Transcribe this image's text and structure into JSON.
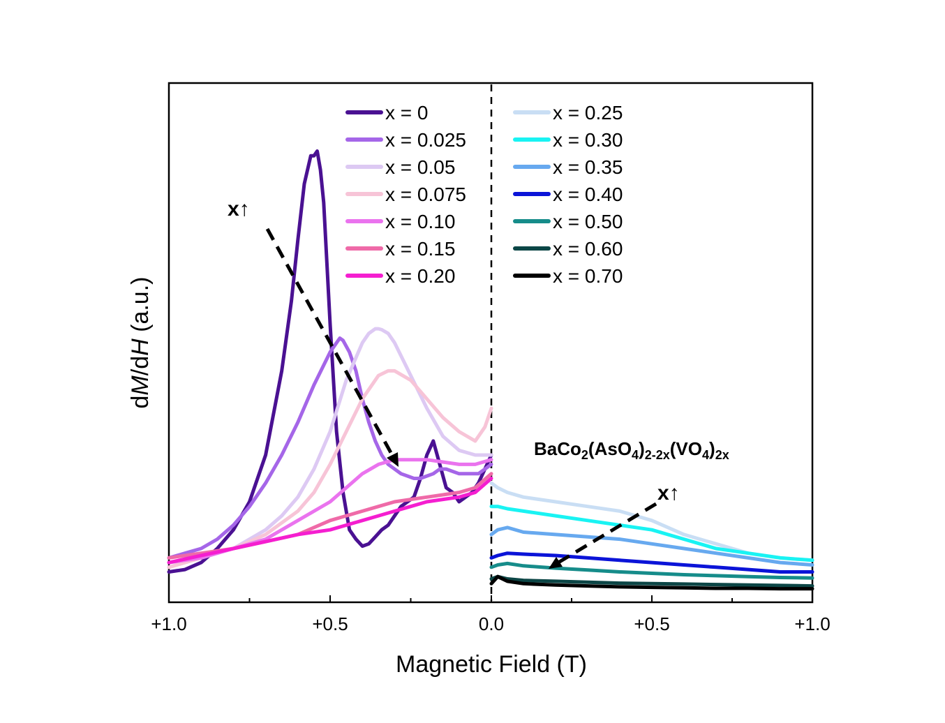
{
  "chart_data": {
    "type": "line",
    "title": "",
    "xlabel": "Magnetic Field (T)",
    "ylabel": "dM/dH (a.u.)",
    "ylabel_parts": {
      "pre": "d",
      "M": "M",
      "mid": "/d",
      "H": "H",
      "post": " (a.u.)"
    },
    "x_tick_labels": [
      "+1.0",
      "+0.5",
      "0.0",
      "+0.5",
      "+1.0"
    ],
    "xlim": [
      -1.0,
      1.0
    ],
    "ylim": [
      0,
      1
    ],
    "grid": false,
    "legend_placement": "top-center",
    "annotations": {
      "compound": {
        "base": "BaCo",
        "s1": "2",
        "p1": "(AsO",
        "s2": "4",
        "p2": ")",
        "s3": "2-2x",
        "p3": "(VO",
        "s4": "4",
        "p4": ")",
        "s5": "2x"
      },
      "trend_left": "x↑",
      "trend_right": "x↑"
    },
    "series": [
      {
        "name": "x = 0",
        "color": "#4a1192",
        "x": [
          -1.0,
          -0.95,
          -0.9,
          -0.85,
          -0.8,
          -0.75,
          -0.7,
          -0.65,
          -0.62,
          -0.6,
          -0.58,
          -0.56,
          -0.55,
          -0.54,
          -0.53,
          -0.52,
          -0.5,
          -0.48,
          -0.46,
          -0.44,
          -0.42,
          -0.4,
          -0.38,
          -0.36,
          -0.34,
          -0.32,
          -0.3,
          -0.28,
          -0.26,
          -0.24,
          -0.22,
          -0.2,
          -0.18,
          -0.16,
          -0.14,
          -0.12,
          -0.1,
          -0.08,
          -0.06,
          -0.04,
          -0.02,
          0.0
        ],
        "y": [
          0.05,
          0.055,
          0.07,
          0.1,
          0.14,
          0.2,
          0.3,
          0.48,
          0.63,
          0.76,
          0.88,
          0.94,
          0.94,
          0.95,
          0.91,
          0.84,
          0.58,
          0.35,
          0.22,
          0.14,
          0.12,
          0.105,
          0.11,
          0.125,
          0.14,
          0.15,
          0.17,
          0.19,
          0.2,
          0.21,
          0.25,
          0.3,
          0.33,
          0.28,
          0.23,
          0.22,
          0.2,
          0.21,
          0.22,
          0.24,
          0.27,
          0.3
        ]
      },
      {
        "name": "x = 0.025",
        "color": "#a566e8",
        "x": [
          -1.0,
          -0.95,
          -0.9,
          -0.85,
          -0.8,
          -0.75,
          -0.7,
          -0.65,
          -0.6,
          -0.55,
          -0.5,
          -0.48,
          -0.47,
          -0.46,
          -0.44,
          -0.42,
          -0.4,
          -0.38,
          -0.36,
          -0.34,
          -0.32,
          -0.3,
          -0.28,
          -0.26,
          -0.24,
          -0.22,
          -0.2,
          -0.18,
          -0.16,
          -0.14,
          -0.12,
          -0.1,
          -0.08,
          -0.06,
          -0.04,
          -0.02,
          0.0
        ],
        "y": [
          0.08,
          0.09,
          0.1,
          0.12,
          0.15,
          0.19,
          0.24,
          0.3,
          0.37,
          0.45,
          0.52,
          0.54,
          0.55,
          0.545,
          0.52,
          0.48,
          0.42,
          0.37,
          0.33,
          0.3,
          0.28,
          0.27,
          0.26,
          0.255,
          0.25,
          0.25,
          0.255,
          0.26,
          0.27,
          0.27,
          0.265,
          0.26,
          0.26,
          0.26,
          0.26,
          0.27,
          0.28
        ]
      },
      {
        "name": "x = 0.05",
        "color": "#ddc9f3",
        "x": [
          -1.0,
          -0.9,
          -0.8,
          -0.7,
          -0.65,
          -0.6,
          -0.55,
          -0.5,
          -0.45,
          -0.4,
          -0.38,
          -0.36,
          -0.35,
          -0.34,
          -0.32,
          -0.3,
          -0.25,
          -0.2,
          -0.15,
          -0.1,
          -0.05,
          0.0
        ],
        "y": [
          0.06,
          0.08,
          0.1,
          0.14,
          0.17,
          0.21,
          0.27,
          0.35,
          0.46,
          0.54,
          0.56,
          0.57,
          0.57,
          0.568,
          0.56,
          0.54,
          0.47,
          0.4,
          0.34,
          0.31,
          0.3,
          0.3
        ]
      },
      {
        "name": "x = 0.075",
        "color": "#f7c4d7",
        "x": [
          -1.0,
          -0.9,
          -0.8,
          -0.7,
          -0.6,
          -0.55,
          -0.5,
          -0.45,
          -0.4,
          -0.35,
          -0.32,
          -0.3,
          -0.25,
          -0.2,
          -0.15,
          -0.1,
          -0.05,
          -0.02,
          0.0
        ],
        "y": [
          0.06,
          0.08,
          0.1,
          0.13,
          0.18,
          0.22,
          0.28,
          0.35,
          0.42,
          0.47,
          0.48,
          0.48,
          0.46,
          0.42,
          0.38,
          0.35,
          0.33,
          0.36,
          0.4
        ]
      },
      {
        "name": "x = 0.10",
        "color": "#ea73ee",
        "x": [
          -1.0,
          -0.9,
          -0.8,
          -0.7,
          -0.6,
          -0.5,
          -0.45,
          -0.4,
          -0.35,
          -0.3,
          -0.25,
          -0.2,
          -0.15,
          -0.1,
          -0.05,
          0.0
        ],
        "y": [
          0.07,
          0.08,
          0.1,
          0.12,
          0.16,
          0.2,
          0.23,
          0.26,
          0.28,
          0.29,
          0.29,
          0.29,
          0.285,
          0.28,
          0.28,
          0.29
        ]
      },
      {
        "name": "x = 0.15",
        "color": "#ef6aa8",
        "x": [
          -1.0,
          -0.9,
          -0.8,
          -0.7,
          -0.6,
          -0.5,
          -0.45,
          -0.4,
          -0.35,
          -0.3,
          -0.25,
          -0.2,
          -0.15,
          -0.1,
          -0.05,
          0.0
        ],
        "y": [
          0.08,
          0.09,
          0.1,
          0.115,
          0.13,
          0.16,
          0.17,
          0.18,
          0.19,
          0.2,
          0.205,
          0.21,
          0.215,
          0.22,
          0.23,
          0.26
        ]
      },
      {
        "name": "x = 0.20",
        "color": "#f51ed0",
        "x": [
          -1.0,
          -0.9,
          -0.8,
          -0.7,
          -0.6,
          -0.5,
          -0.45,
          -0.4,
          -0.35,
          -0.3,
          -0.25,
          -0.2,
          -0.15,
          -0.1,
          -0.05,
          0.0
        ],
        "y": [
          0.07,
          0.085,
          0.1,
          0.115,
          0.13,
          0.14,
          0.15,
          0.16,
          0.17,
          0.18,
          0.19,
          0.2,
          0.205,
          0.21,
          0.22,
          0.25
        ]
      },
      {
        "name": "x = 0.25",
        "color": "#c9def4",
        "x": [
          0.0,
          0.02,
          0.05,
          0.1,
          0.2,
          0.3,
          0.4,
          0.5,
          0.6,
          0.7,
          0.8,
          0.9,
          1.0
        ],
        "y": [
          0.24,
          0.23,
          0.22,
          0.21,
          0.2,
          0.19,
          0.18,
          0.16,
          0.13,
          0.11,
          0.09,
          0.08,
          0.075
        ]
      },
      {
        "name": "x = 0.30",
        "color": "#19f3f3",
        "x": [
          0.0,
          0.02,
          0.05,
          0.1,
          0.2,
          0.3,
          0.4,
          0.5,
          0.6,
          0.7,
          0.8,
          0.9,
          1.0
        ],
        "y": [
          0.19,
          0.19,
          0.185,
          0.18,
          0.17,
          0.16,
          0.15,
          0.14,
          0.12,
          0.1,
          0.09,
          0.08,
          0.075
        ]
      },
      {
        "name": "x = 0.35",
        "color": "#67a9ef",
        "x": [
          0.0,
          0.02,
          0.05,
          0.1,
          0.2,
          0.3,
          0.4,
          0.5,
          0.6,
          0.7,
          0.8,
          0.9,
          1.0
        ],
        "y": [
          0.13,
          0.14,
          0.145,
          0.135,
          0.13,
          0.125,
          0.12,
          0.11,
          0.1,
          0.09,
          0.08,
          0.07,
          0.065
        ]
      },
      {
        "name": "x = 0.40",
        "color": "#0b14d8",
        "x": [
          0.0,
          0.02,
          0.05,
          0.1,
          0.2,
          0.3,
          0.4,
          0.5,
          0.6,
          0.7,
          0.8,
          0.9,
          1.0
        ],
        "y": [
          0.08,
          0.085,
          0.09,
          0.088,
          0.085,
          0.08,
          0.075,
          0.07,
          0.065,
          0.06,
          0.055,
          0.05,
          0.05
        ]
      },
      {
        "name": "x = 0.50",
        "color": "#168c8a",
        "x": [
          0.0,
          0.02,
          0.05,
          0.1,
          0.2,
          0.3,
          0.4,
          0.5,
          0.6,
          0.7,
          0.8,
          0.9,
          1.0
        ],
        "y": [
          0.06,
          0.065,
          0.068,
          0.063,
          0.058,
          0.054,
          0.05,
          0.047,
          0.044,
          0.042,
          0.04,
          0.038,
          0.037
        ]
      },
      {
        "name": "x = 0.60",
        "color": "#0c4646",
        "x": [
          0.0,
          0.02,
          0.05,
          0.1,
          0.2,
          0.3,
          0.4,
          0.5,
          0.6,
          0.7,
          0.8,
          0.9,
          1.0
        ],
        "y": [
          0.035,
          0.04,
          0.035,
          0.032,
          0.03,
          0.028,
          0.026,
          0.025,
          0.024,
          0.023,
          0.022,
          0.021,
          0.02
        ]
      },
      {
        "name": "x = 0.70",
        "color": "#000000",
        "x": [
          0.0,
          0.02,
          0.05,
          0.1,
          0.2,
          0.3,
          0.4,
          0.5,
          0.6,
          0.7,
          0.8,
          0.9,
          1.0
        ],
        "y": [
          0.025,
          0.04,
          0.03,
          0.025,
          0.022,
          0.02,
          0.018,
          0.017,
          0.016,
          0.015,
          0.015,
          0.014,
          0.014
        ]
      }
    ]
  }
}
